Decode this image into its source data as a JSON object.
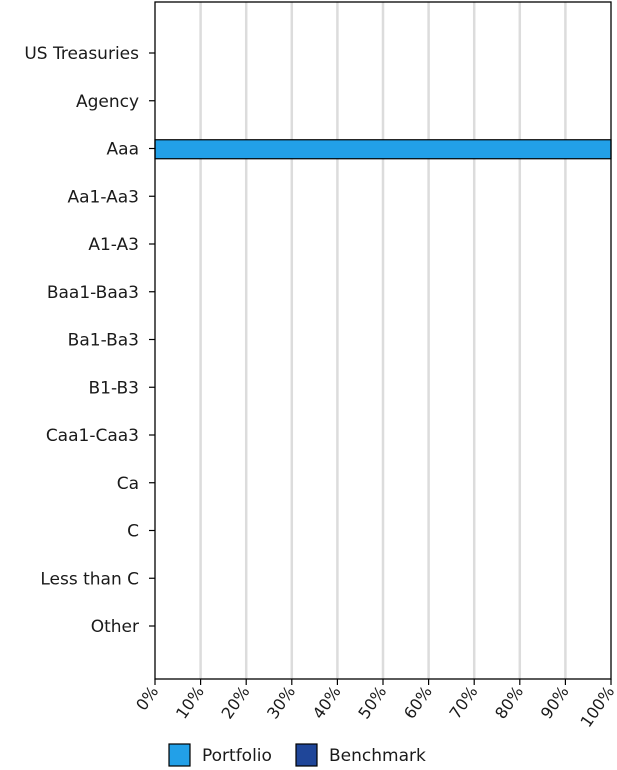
{
  "chart_data": {
    "type": "bar",
    "orientation": "horizontal",
    "categories": [
      "US Treasuries",
      "Agency",
      "Aaa",
      "Aa1-Aa3",
      "A1-A3",
      "Baa1-Baa3",
      "Ba1-Ba3",
      "B1-B3",
      "Caa1-Caa3",
      "Ca",
      "C",
      "Less than C",
      "Other"
    ],
    "series": [
      {
        "name": "Portfolio",
        "color": "#22a0e8",
        "values": [
          0,
          0,
          100,
          0,
          0,
          0,
          0,
          0,
          0,
          0,
          0,
          0,
          0
        ]
      },
      {
        "name": "Benchmark",
        "color": "#1f4699",
        "values": [
          0,
          0,
          0,
          0,
          0,
          0,
          0,
          0,
          0,
          0,
          0,
          0,
          0
        ]
      }
    ],
    "xlim": [
      0,
      100
    ],
    "xticks": [
      "0%",
      "10%",
      "20%",
      "30%",
      "40%",
      "50%",
      "60%",
      "70%",
      "80%",
      "90%",
      "100%"
    ],
    "grid": "vertical",
    "legend_position": "bottom"
  }
}
